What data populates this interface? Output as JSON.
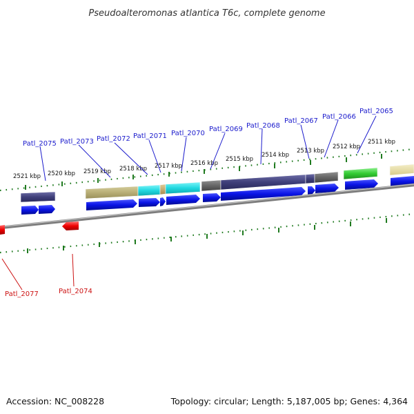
{
  "title": "Pseudoalteromonas atlantica T6c, complete genome",
  "footer": {
    "accession": "Accession: NC_008228",
    "summary": "Topology: circular; Length: 5,187,005 bp; Genes: 4,364"
  },
  "colors": {
    "forward_gene": "#0a14e6",
    "reverse_gene": "#ee0000",
    "forward_label": "#1a1acc",
    "reverse_label": "#cc1111",
    "tick": "#1f7a1f",
    "backbone": "#888888"
  },
  "position_ticks": [
    "2521 kbp",
    "2520 kbp",
    "2519 kbp",
    "2518 kbp",
    "2517 kbp",
    "2516 kbp",
    "2515 kbp",
    "2514 kbp",
    "2513 kbp",
    "2512 kbp",
    "2511 kbp"
  ],
  "forward_gene_labels": [
    "Patl_2075",
    "Patl_2073",
    "Patl_2072",
    "Patl_2071",
    "Patl_2070",
    "Patl_2069",
    "Patl_2068",
    "Patl_2067",
    "Patl_2066",
    "Patl_2065"
  ],
  "reverse_gene_labels": [
    "Patl_2077",
    "Patl_2074"
  ],
  "feature_colors": [
    "#3f3f7a",
    "#b8ae76",
    "#20d8e0",
    "#c4a870",
    "#666666",
    "#33cc33",
    "#e6dca0"
  ]
}
